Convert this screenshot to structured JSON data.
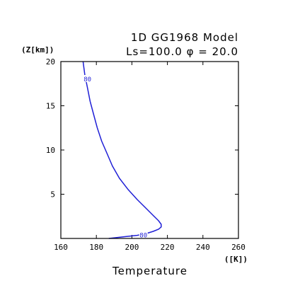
{
  "chart_data": {
    "type": "line",
    "title": "1D GG1968 Model",
    "subtitle": "Ls=100.0 φ = 20.0",
    "xlabel": "Temperature",
    "xunit": "([K])",
    "ylabel": "(Z[km])",
    "xlim": [
      160,
      260
    ],
    "ylim": [
      0,
      20
    ],
    "xticks": [
      160,
      180,
      200,
      220,
      240,
      260
    ],
    "yticks": [
      5,
      10,
      15,
      20
    ],
    "grid": false,
    "line_color": "#1f1fd6",
    "series": [
      {
        "x": [
          187,
          196,
          203,
          208,
          212,
          215,
          216.5,
          216.5,
          215,
          212,
          208,
          203,
          198,
          193,
          189,
          186,
          183,
          180.5,
          178.5,
          176.5,
          175,
          173.5,
          172.5
        ],
        "y": [
          0.0,
          0.2,
          0.35,
          0.55,
          0.8,
          1.05,
          1.3,
          1.6,
          2.0,
          2.6,
          3.4,
          4.4,
          5.5,
          6.8,
          8.2,
          9.6,
          11.0,
          12.5,
          14.0,
          15.5,
          17.0,
          18.5,
          20.0
        ]
      }
    ],
    "contour_labels": [
      {
        "text": "80",
        "x": 175.0,
        "y": 18.0
      },
      {
        "text": "80",
        "x": 206.5,
        "y": 0.35
      }
    ]
  }
}
